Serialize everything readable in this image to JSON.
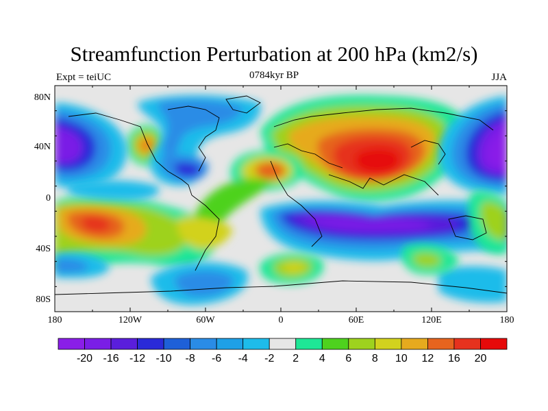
{
  "title": "Streamfunction Perturbation at 200 hPa (km2/s)",
  "subtitle_left": "Expt = teiUC",
  "subtitle_center": "0784kyr BP",
  "subtitle_right": "JJA",
  "axes": {
    "lon_ticks": [
      "180",
      "120W",
      "60W",
      "0",
      "60E",
      "120E",
      "180"
    ],
    "lat_ticks": [
      "80N",
      "40N",
      "0",
      "40S",
      "80S"
    ]
  },
  "colorbar": {
    "colors": [
      "#8a1ee8",
      "#7a1ee6",
      "#5a1edc",
      "#2a2ad8",
      "#1e60d8",
      "#2a8ce6",
      "#1ea0e6",
      "#1ebcea",
      "#e6e6e6",
      "#1ee696",
      "#4ed21e",
      "#9ed21e",
      "#d2d21e",
      "#e6aa1e",
      "#e6641e",
      "#e6321e",
      "#e60a0a"
    ],
    "labels": [
      "-20",
      "-16",
      "-12",
      "-10",
      "-8",
      "-6",
      "-4",
      "-2",
      "2",
      "4",
      "6",
      "8",
      "10",
      "12",
      "16",
      "20"
    ]
  },
  "map_data": {
    "projection": "cylindrical-equidistant",
    "lon_range": [
      -180,
      180
    ],
    "lat_range": [
      -90,
      90
    ],
    "background_color": "#e6e6e6",
    "blobs": [
      {
        "lon": 64,
        "lat": 35,
        "level": 16
      },
      {
        "lon": 80,
        "lat": 30,
        "level": 16
      },
      {
        "lon": 55,
        "lat": 38,
        "level": 12
      },
      {
        "lon": 95,
        "lat": 40,
        "level": 8
      },
      {
        "lon": 20,
        "lat": 60,
        "level": 8
      },
      {
        "lon": -10,
        "lat": 25,
        "level": 12
      },
      {
        "lon": -112,
        "lat": 42,
        "level": 10
      },
      {
        "lon": -140,
        "lat": -20,
        "level": 16
      },
      {
        "lon": 40,
        "lat": -25,
        "level": -12
      },
      {
        "lon": 90,
        "lat": -30,
        "level": -12
      },
      {
        "lon": 165,
        "lat": 35,
        "level": -20
      },
      {
        "lon": -170,
        "lat": 45,
        "level": -16
      },
      {
        "lon": -80,
        "lat": 22,
        "level": -10
      },
      {
        "lon": -70,
        "lat": -65,
        "level": -8
      },
      {
        "lon": 20,
        "lat": -55,
        "level": 8
      },
      {
        "lon": 100,
        "lat": -55,
        "level": 6
      }
    ]
  }
}
